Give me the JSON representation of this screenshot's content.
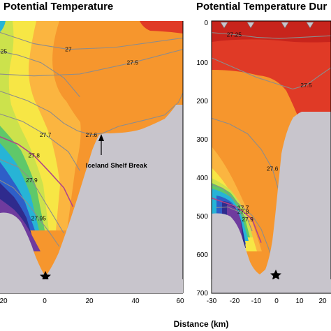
{
  "chart_data": [
    {
      "type": "heatmap",
      "title": "Potential Temperature",
      "xlabel": "",
      "ylabel": "",
      "x_ticks": [
        "0",
        "20",
        "40",
        "60"
      ],
      "xlim": [
        -20,
        60
      ],
      "ylim": [
        0,
        700
      ],
      "contours": [
        {
          "level": "27",
          "path": [
            [
              -20,
              30
            ],
            [
              -5,
              60
            ],
            [
              10,
              75
            ],
            [
              30,
              70
            ],
            [
              60,
              45
            ]
          ]
        },
        {
          "level": "27.25",
          "path": [
            [
              -20,
              80
            ],
            [
              -12,
              90
            ],
            [
              -2,
              110
            ],
            [
              8,
              150
            ],
            [
              15,
              200
            ]
          ]
        },
        {
          "level": "27.5",
          "path": [
            [
              -20,
              140
            ],
            [
              -5,
              145
            ],
            [
              15,
              140
            ],
            [
              38,
              110
            ],
            [
              60,
              75
            ]
          ]
        },
        {
          "level": "27.6",
          "path": [
            [
              -20,
              185
            ],
            [
              -8,
              210
            ],
            [
              2,
              240
            ],
            [
              8,
              270
            ],
            [
              14,
              290
            ],
            [
              20,
              300
            ],
            [
              25,
              296
            ],
            [
              32,
              278
            ],
            [
              43,
              262
            ],
            [
              52,
              248
            ],
            [
              58,
              215
            ],
            [
              60,
              190
            ]
          ]
        },
        {
          "level": "27.7",
          "path": [
            [
              -20,
              245
            ],
            [
              -10,
              265
            ],
            [
              0,
              300
            ],
            [
              10,
              345
            ],
            [
              15,
              395
            ]
          ]
        },
        {
          "level": "27.8",
          "path": [
            [
              -20,
              305
            ],
            [
              -12,
              325
            ],
            [
              -5,
              355
            ],
            [
              2,
              400
            ],
            [
              8,
              440
            ],
            [
              12,
              490
            ]
          ]
        },
        {
          "level": "27.9",
          "path": [
            [
              -20,
              365
            ],
            [
              -12,
              385
            ],
            [
              -6,
              420
            ],
            [
              -1,
              470
            ],
            [
              4,
              520
            ],
            [
              8,
              560
            ]
          ]
        },
        {
          "level": "27.95",
          "path": [
            [
              -20,
              420
            ],
            [
              -14,
              440
            ],
            [
              -8,
              480
            ],
            [
              -3,
              520
            ],
            [
              2,
              560
            ],
            [
              6,
              595
            ]
          ]
        }
      ],
      "annotations": [
        {
          "text": "Iceland Shelf Break",
          "at": [
            25,
            310
          ],
          "label_at": [
            31,
            390
          ]
        }
      ],
      "markers": [
        {
          "symbol": "star",
          "at": [
            0,
            690
          ]
        }
      ]
    },
    {
      "type": "heatmap",
      "title": "Potential Temperature Dur",
      "xlabel": "Distance (km)",
      "ylabel": "",
      "x_ticks": [
        "-30",
        "-20",
        "-10",
        "0",
        "10",
        "20"
      ],
      "y_ticks": [
        "0",
        "100",
        "200",
        "300",
        "400",
        "500",
        "600",
        "700"
      ],
      "xlim": [
        -30,
        23
      ],
      "ylim": [
        0,
        700
      ],
      "contours": [
        {
          "level": "27.25",
          "path": [
            [
              -30,
              30
            ],
            [
              -20,
              35
            ],
            [
              -10,
              42
            ],
            [
              0,
              45
            ],
            [
              10,
              42
            ],
            [
              23,
              38
            ]
          ]
        },
        {
          "level": "27.5",
          "path": [
            [
              -30,
              95
            ],
            [
              -20,
              120
            ],
            [
              -10,
              145
            ],
            [
              -2,
              160
            ],
            [
              6,
              175
            ],
            [
              12,
              165
            ],
            [
              18,
              140
            ],
            [
              23,
              120
            ]
          ]
        },
        {
          "level": "27.6",
          "path": [
            [
              -30,
              250
            ],
            [
              -22,
              265
            ],
            [
              -14,
              290
            ],
            [
              -8,
              330
            ],
            [
              -3,
              380
            ],
            [
              0,
              440
            ],
            [
              2,
              520
            ],
            [
              4,
              560
            ]
          ]
        },
        {
          "level": "27.7",
          "path": [
            [
              -30,
              420
            ],
            [
              -25,
              430
            ],
            [
              -20,
              460
            ],
            [
              -16,
              480
            ],
            [
              -12,
              500
            ],
            [
              -8,
              535
            ],
            [
              -5,
              580
            ],
            [
              -2,
              630
            ],
            [
              0,
              660
            ]
          ]
        },
        {
          "level": "27.8",
          "path": [
            [
              -30,
              455
            ],
            [
              -25,
              465
            ],
            [
              -20,
              475
            ],
            [
              -16,
              490
            ],
            [
              -12,
              510
            ],
            [
              -10,
              540
            ],
            [
              -8,
              570
            ]
          ]
        },
        {
          "level": "27.9",
          "path": [
            [
              -28,
              480
            ],
            [
              -23,
              478
            ],
            [
              -18,
              490
            ],
            [
              -14,
              510
            ],
            [
              -12,
              540
            ]
          ]
        }
      ],
      "markers": [
        {
          "symbol": "star",
          "at": [
            0,
            655
          ]
        },
        {
          "symbol": "triangle",
          "at": [
            -24,
            5
          ]
        },
        {
          "symbol": "triangle",
          "at": [
            -14,
            5
          ]
        },
        {
          "symbol": "triangle",
          "at": [
            3,
            5
          ]
        },
        {
          "symbol": "triangle",
          "at": [
            14,
            5
          ]
        }
      ]
    }
  ],
  "palette": {
    "bathymetry": "#c8c5cc",
    "contour_line": "#8c8c8c",
    "contour_27.8": "#b0458a",
    "warm_red": "#e03a26",
    "orange": "#f6962d",
    "light_orange": "#fbb540",
    "yellow": "#f7e645",
    "lime": "#cce24c",
    "green": "#5fc86a",
    "cyan": "#27b4d6",
    "blue": "#2e5fc8",
    "navy": "#2f2b8d",
    "purple": "#6f3b9e",
    "star": "#000000"
  }
}
